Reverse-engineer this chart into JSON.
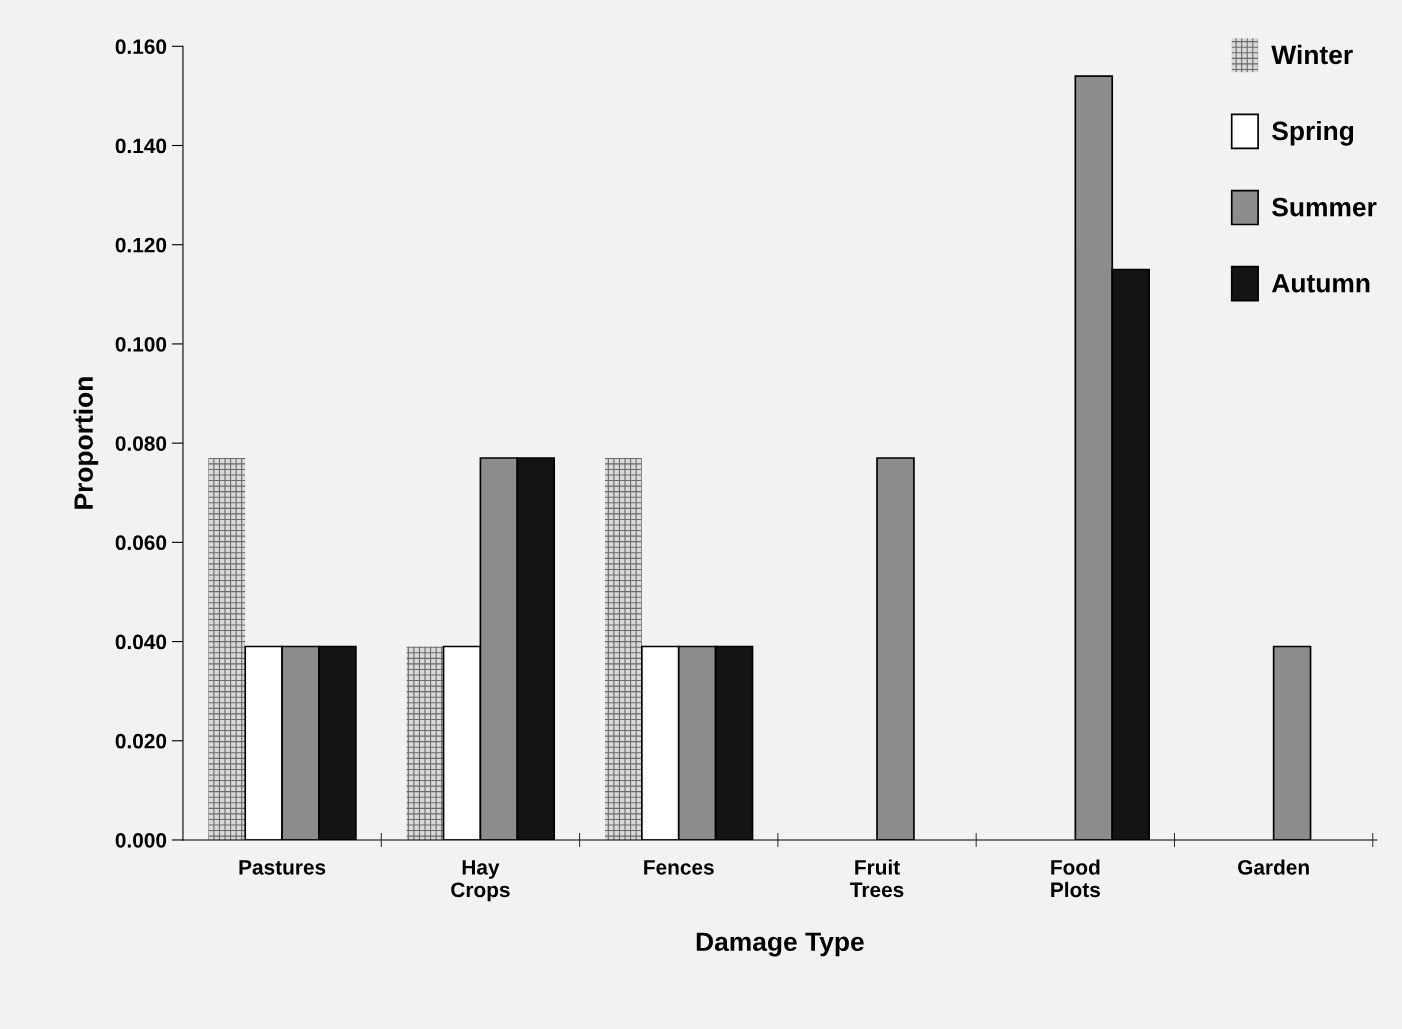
{
  "chart_data": {
    "type": "bar",
    "xlabel": "Damage Type",
    "ylabel": "Proportion",
    "categories": [
      "Pastures",
      "Hay Crops",
      "Fences",
      "Fruit Trees",
      "Food Plots",
      "Garden"
    ],
    "series": [
      {
        "name": "Winter",
        "color": "#d9d9d9",
        "values": [
          0.077,
          0.039,
          0.077,
          null,
          null,
          null
        ]
      },
      {
        "name": "Spring",
        "color": "#ffffff",
        "values": [
          0.039,
          0.039,
          0.039,
          null,
          null,
          null
        ]
      },
      {
        "name": "Summer",
        "color": "#8c8c8c",
        "values": [
          0.039,
          0.077,
          0.039,
          0.077,
          0.154,
          0.039
        ]
      },
      {
        "name": "Autumn",
        "color": "#141414",
        "values": [
          0.039,
          0.077,
          0.039,
          null,
          0.115,
          null
        ]
      }
    ],
    "ylim": [
      0,
      0.16
    ],
    "yticks": [
      {
        "value": 0,
        "label": "0.000"
      },
      {
        "value": 0.02,
        "label": "0.020"
      },
      {
        "value": 0.04,
        "label": "0.040"
      },
      {
        "value": 0.06,
        "label": "0.060"
      },
      {
        "value": 0.08,
        "label": "0.080"
      },
      {
        "value": 0.1,
        "label": "0.100"
      },
      {
        "value": 0.12,
        "label": "0.120"
      },
      {
        "value": 0.14,
        "label": "0.140"
      },
      {
        "value": 0.16,
        "label": "0.160"
      }
    ],
    "grid": false,
    "legend": "top right"
  }
}
